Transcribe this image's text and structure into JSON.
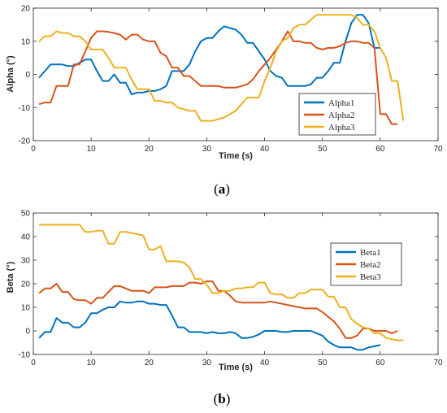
{
  "colors": {
    "s1": "#0072BD",
    "s2": "#D95319",
    "s3": "#EDB120",
    "axis": "#262626"
  },
  "chart_data": [
    {
      "type": "line",
      "caption_pre": "(",
      "caption_letter": "a",
      "caption_post": ")",
      "xlabel": "Time (s)",
      "ylabel": "Alpha (°)",
      "xlim": [
        0,
        70
      ],
      "ylim": [
        -20,
        20
      ],
      "xticks": [
        0,
        10,
        20,
        30,
        40,
        50,
        60,
        70
      ],
      "yticks": [
        -20,
        -10,
        0,
        10,
        20
      ],
      "legend_position": "lower-right",
      "series": [
        {
          "name": "Alpha1",
          "color": "s1",
          "x": [
            1,
            2,
            3,
            4,
            5,
            6,
            7,
            8,
            9,
            10,
            11,
            12,
            13,
            14,
            15,
            16,
            17,
            18,
            19,
            20,
            21,
            22,
            23,
            24,
            25,
            26,
            27,
            28,
            29,
            30,
            31,
            32,
            33,
            34,
            35,
            36,
            37,
            38,
            39,
            40,
            41,
            42,
            43,
            44,
            45,
            46,
            47,
            48,
            49,
            50,
            51,
            52,
            53,
            54,
            55,
            56,
            57,
            58,
            59,
            60
          ],
          "y": [
            -1,
            1,
            3,
            3,
            3,
            2.5,
            2.5,
            3.5,
            4.5,
            4.5,
            1,
            -2,
            -2,
            0,
            -2.5,
            -2.5,
            -6,
            -5.5,
            -5.5,
            -5,
            -5,
            -4.5,
            -3.5,
            1,
            1,
            1,
            3,
            7,
            10,
            11,
            11,
            13,
            14.5,
            14,
            13.5,
            12,
            9.5,
            9.5,
            7,
            4.5,
            1,
            -0.5,
            -1,
            -3.5,
            -3.5,
            -3.5,
            -3.5,
            -3,
            -1,
            -1,
            1,
            3.5,
            3.5,
            10,
            15.5,
            18,
            18,
            15.5,
            8,
            8
          ]
        },
        {
          "name": "Alpha2",
          "color": "s2",
          "x": [
            1,
            2,
            3,
            4,
            5,
            6,
            7,
            8,
            9,
            10,
            11,
            12,
            13,
            14,
            15,
            16,
            17,
            18,
            19,
            20,
            21,
            22,
            23,
            24,
            25,
            26,
            27,
            28,
            29,
            30,
            31,
            32,
            33,
            34,
            35,
            36,
            37,
            38,
            39,
            40,
            41,
            42,
            43,
            44,
            45,
            46,
            47,
            48,
            49,
            50,
            51,
            52,
            53,
            54,
            55,
            56,
            57,
            58,
            59,
            60,
            61,
            62,
            63
          ],
          "y": [
            -9,
            -8.5,
            -8.5,
            -3.5,
            -3.5,
            -3.5,
            3,
            3,
            7,
            11,
            13,
            13,
            12.8,
            12.5,
            12,
            10.5,
            12,
            12,
            10.5,
            10,
            10,
            6.5,
            5.5,
            2,
            2,
            -0.5,
            -0.5,
            -2,
            -3.5,
            -3.5,
            -3.5,
            -3.5,
            -4,
            -4,
            -4,
            -3.5,
            -3,
            -1.5,
            1,
            3,
            5,
            7.5,
            10,
            13,
            10,
            10,
            9.5,
            9.5,
            8,
            7.5,
            8,
            8,
            8.5,
            9.5,
            10,
            10,
            9.5,
            9.5,
            8,
            -12,
            -12,
            -15,
            -15
          ]
        },
        {
          "name": "Alpha3",
          "color": "s3",
          "x": [
            1,
            2,
            3,
            4,
            5,
            6,
            7,
            8,
            9,
            10,
            11,
            12,
            13,
            14,
            15,
            16,
            17,
            18,
            19,
            20,
            21,
            22,
            23,
            24,
            25,
            26,
            27,
            28,
            29,
            30,
            31,
            32,
            33,
            34,
            35,
            36,
            37,
            38,
            39,
            40,
            41,
            42,
            43,
            44,
            45,
            46,
            47,
            48,
            49,
            50,
            51,
            52,
            53,
            54,
            55,
            56,
            57,
            58,
            59,
            60,
            61,
            62,
            63,
            64
          ],
          "y": [
            10,
            11.5,
            11.5,
            13,
            12.5,
            12.5,
            11.5,
            11.5,
            10,
            7.5,
            7.5,
            7.5,
            5,
            2,
            2,
            2,
            -1.5,
            -4.5,
            -4.5,
            -4.5,
            -8,
            -8,
            -8.5,
            -8.5,
            -10,
            -10.5,
            -11,
            -11,
            -14,
            -14,
            -14,
            -13.5,
            -13,
            -12,
            -11,
            -9,
            -7,
            -7,
            -7,
            -2,
            2,
            7,
            10,
            11,
            14,
            15,
            15,
            16.5,
            18,
            18,
            18,
            18,
            18,
            18,
            18,
            17,
            15,
            15,
            13,
            8,
            5,
            -2,
            -2,
            -14
          ]
        }
      ],
      "legend_labels": [
        "Alpha1",
        "Alpha2",
        "Alpha3"
      ]
    },
    {
      "type": "line",
      "caption_pre": "(",
      "caption_letter": "b",
      "caption_post": ")",
      "xlabel": "Time (s)",
      "ylabel": "Beta (°)",
      "xlim": [
        0,
        70
      ],
      "ylim": [
        -10,
        50
      ],
      "xticks": [
        0,
        10,
        20,
        30,
        40,
        50,
        60,
        70
      ],
      "yticks": [
        -10,
        0,
        10,
        20,
        30,
        40,
        50
      ],
      "legend_position": "upper-right",
      "series": [
        {
          "name": "Beta1",
          "color": "s1",
          "x": [
            1,
            2,
            3,
            4,
            5,
            6,
            7,
            8,
            9,
            10,
            11,
            12,
            13,
            14,
            15,
            16,
            17,
            18,
            19,
            20,
            21,
            22,
            23,
            24,
            25,
            26,
            27,
            28,
            29,
            30,
            31,
            32,
            33,
            34,
            35,
            36,
            37,
            38,
            39,
            40,
            41,
            42,
            43,
            44,
            45,
            46,
            47,
            48,
            49,
            50,
            51,
            52,
            53,
            54,
            55,
            56,
            57,
            58,
            59,
            60
          ],
          "y": [
            -3,
            -0.5,
            -0.5,
            5.5,
            3.5,
            3.5,
            1.5,
            1.5,
            3.5,
            7.5,
            7.5,
            9,
            10,
            10,
            12.5,
            12,
            12,
            12.5,
            12.5,
            11.5,
            11.5,
            11,
            11,
            6.5,
            1.5,
            1.5,
            -0.5,
            -0.5,
            -0.5,
            -1,
            -0.5,
            -1,
            -1,
            -0.5,
            -1,
            -3,
            -3,
            -2.5,
            -1.5,
            0,
            0,
            0,
            -0.5,
            -0.5,
            0,
            0,
            0,
            0,
            -1,
            -2,
            -4.5,
            -6,
            -7,
            -7,
            -7,
            -8,
            -8,
            -7,
            -6.5,
            -6
          ]
        },
        {
          "name": "Beta2",
          "color": "s2",
          "x": [
            1,
            2,
            3,
            4,
            5,
            6,
            7,
            8,
            9,
            10,
            11,
            12,
            13,
            14,
            15,
            16,
            17,
            18,
            19,
            20,
            21,
            22,
            23,
            24,
            25,
            26,
            27,
            28,
            29,
            30,
            31,
            32,
            33,
            34,
            35,
            36,
            37,
            38,
            39,
            40,
            41,
            42,
            43,
            44,
            45,
            46,
            47,
            48,
            49,
            50,
            51,
            52,
            53,
            54,
            55,
            56,
            57,
            58,
            59,
            60,
            61,
            62,
            63
          ],
          "y": [
            16,
            18,
            18,
            20,
            16.5,
            16.5,
            13.5,
            13,
            13,
            11.5,
            14,
            14,
            16.5,
            19,
            19,
            18,
            17,
            17,
            17,
            16,
            18.5,
            18.5,
            18.5,
            19,
            19,
            19,
            20.5,
            20.5,
            20,
            21,
            21,
            17,
            17,
            15,
            12.5,
            12,
            12,
            12,
            12,
            12,
            12.5,
            12,
            11.5,
            11,
            10.5,
            10,
            9.5,
            9.5,
            9.5,
            8,
            6,
            4,
            1,
            -3,
            -3,
            -2,
            1,
            1,
            0,
            0,
            0,
            -1,
            0
          ]
        },
        {
          "name": "Beta3",
          "color": "s3",
          "x": [
            1,
            2,
            3,
            4,
            5,
            6,
            7,
            8,
            9,
            10,
            11,
            12,
            13,
            14,
            15,
            16,
            17,
            18,
            19,
            20,
            21,
            22,
            23,
            24,
            25,
            26,
            27,
            28,
            29,
            30,
            31,
            32,
            33,
            34,
            35,
            36,
            37,
            38,
            39,
            40,
            41,
            42,
            43,
            44,
            45,
            46,
            47,
            48,
            49,
            50,
            51,
            52,
            53,
            54,
            55,
            56,
            57,
            58,
            59,
            60,
            61,
            62,
            63,
            64
          ],
          "y": [
            45,
            45,
            45,
            45,
            45,
            45,
            45,
            45,
            42,
            42,
            42.5,
            42.5,
            37,
            37,
            42,
            42,
            41.5,
            41,
            40.5,
            34.5,
            34.5,
            36,
            29.5,
            29.5,
            29.5,
            29,
            27,
            22,
            22,
            19.5,
            16,
            16,
            17,
            17,
            18,
            18,
            18.5,
            18.5,
            20.5,
            20.5,
            16,
            15.5,
            15.5,
            14,
            14,
            16,
            16,
            17.5,
            17.5,
            17.5,
            14.5,
            14.5,
            10,
            10,
            5,
            3,
            1.5,
            1,
            -1,
            -1,
            -3,
            -3.5,
            -4,
            -4
          ]
        }
      ],
      "legend_labels": [
        "Beta1",
        "Beta2",
        "Beta3"
      ]
    }
  ]
}
